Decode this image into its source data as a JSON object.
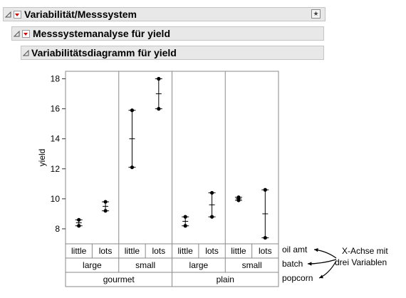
{
  "outline": {
    "level1_title": "Variabilität/Messsystem",
    "level2_title": "Messsystemanalyse für yield",
    "level3_title": "Variabilitätsdiagramm für yield"
  },
  "chart_data": {
    "type": "variability",
    "ylabel": "yield",
    "ylim": [
      7,
      18.5
    ],
    "yticks": [
      8,
      10,
      12,
      14,
      16,
      18
    ],
    "x_levels": {
      "oil amt": [
        "little",
        "lots",
        "little",
        "lots",
        "little",
        "lots",
        "little",
        "lots"
      ],
      "batch": [
        "large",
        "small",
        "large",
        "small"
      ],
      "popcorn": [
        "gourmet",
        "plain"
      ]
    },
    "x_level_names": [
      "oil amt",
      "batch",
      "popcorn"
    ],
    "cells": [
      {
        "popcorn": "gourmet",
        "batch": "large",
        "oil_amt": "little",
        "values": [
          8.6,
          8.2
        ],
        "mean": 8.4
      },
      {
        "popcorn": "gourmet",
        "batch": "large",
        "oil_amt": "lots",
        "values": [
          9.8,
          9.2
        ],
        "mean": 9.5
      },
      {
        "popcorn": "gourmet",
        "batch": "small",
        "oil_amt": "little",
        "values": [
          15.9,
          12.1
        ],
        "mean": 14.0
      },
      {
        "popcorn": "gourmet",
        "batch": "small",
        "oil_amt": "lots",
        "values": [
          18.0,
          16.0
        ],
        "mean": 17.0
      },
      {
        "popcorn": "plain",
        "batch": "large",
        "oil_amt": "little",
        "values": [
          8.8,
          8.2
        ],
        "mean": 8.5
      },
      {
        "popcorn": "plain",
        "batch": "large",
        "oil_amt": "lots",
        "values": [
          10.4,
          8.8
        ],
        "mean": 9.6
      },
      {
        "popcorn": "plain",
        "batch": "small",
        "oil_amt": "little",
        "values": [
          10.1,
          9.9
        ],
        "mean": 10.0
      },
      {
        "popcorn": "plain",
        "batch": "small",
        "oil_amt": "lots",
        "values": [
          10.6,
          7.4
        ],
        "mean": 9.0
      }
    ]
  },
  "annotation": {
    "line1": "X-Achse mit",
    "line2": "drei Variablen"
  },
  "colors": {
    "header_bg": "#e8e8e8",
    "red_arrow": "#d40000"
  }
}
